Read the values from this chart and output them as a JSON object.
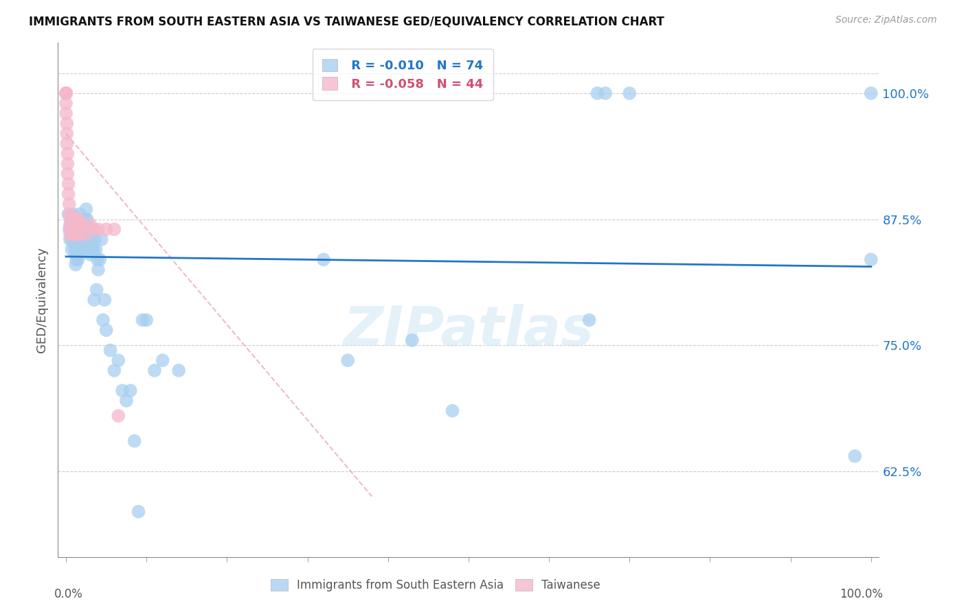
{
  "title": "IMMIGRANTS FROM SOUTH EASTERN ASIA VS TAIWANESE GED/EQUIVALENCY CORRELATION CHART",
  "source": "Source: ZipAtlas.com",
  "ylabel": "GED/Equivalency",
  "ytick_labels": [
    "100.0%",
    "87.5%",
    "75.0%",
    "62.5%"
  ],
  "ytick_values": [
    1.0,
    0.875,
    0.75,
    0.625
  ],
  "xlim": [
    0.0,
    1.0
  ],
  "ylim": [
    0.54,
    1.05
  ],
  "legend_blue_r": "-0.010",
  "legend_blue_n": "74",
  "legend_pink_r": "-0.058",
  "legend_pink_n": "44",
  "legend_blue_label": "Immigrants from South Eastern Asia",
  "legend_pink_label": "Taiwanese",
  "blue_color": "#a8cff0",
  "pink_color": "#f5b8cb",
  "trendline_blue_color": "#2176c7",
  "trendline_pink_color": "#e8b0c0",
  "blue_x": [
    0.003,
    0.004,
    0.005,
    0.006,
    0.007,
    0.007,
    0.008,
    0.009,
    0.009,
    0.01,
    0.011,
    0.011,
    0.012,
    0.012,
    0.013,
    0.013,
    0.014,
    0.015,
    0.015,
    0.016,
    0.017,
    0.017,
    0.018,
    0.019,
    0.02,
    0.021,
    0.022,
    0.023,
    0.024,
    0.025,
    0.026,
    0.027,
    0.028,
    0.029,
    0.03,
    0.031,
    0.032,
    0.033,
    0.034,
    0.035,
    0.036,
    0.037,
    0.038,
    0.039,
    0.04,
    0.042,
    0.044,
    0.046,
    0.048,
    0.05,
    0.055,
    0.06,
    0.065,
    0.07,
    0.075,
    0.08,
    0.085,
    0.09,
    0.095,
    0.1,
    0.11,
    0.12,
    0.14,
    0.32,
    0.35,
    0.43,
    0.48,
    0.65,
    0.66,
    0.67,
    0.7,
    0.98,
    1.0,
    1.0
  ],
  "blue_y": [
    0.88,
    0.865,
    0.855,
    0.87,
    0.855,
    0.845,
    0.87,
    0.88,
    0.865,
    0.85,
    0.855,
    0.845,
    0.84,
    0.83,
    0.845,
    0.835,
    0.855,
    0.845,
    0.835,
    0.845,
    0.88,
    0.87,
    0.855,
    0.865,
    0.875,
    0.855,
    0.845,
    0.865,
    0.875,
    0.885,
    0.875,
    0.87,
    0.855,
    0.845,
    0.84,
    0.855,
    0.845,
    0.865,
    0.845,
    0.795,
    0.855,
    0.845,
    0.805,
    0.835,
    0.825,
    0.835,
    0.855,
    0.775,
    0.795,
    0.765,
    0.745,
    0.725,
    0.735,
    0.705,
    0.695,
    0.705,
    0.655,
    0.585,
    0.775,
    0.775,
    0.725,
    0.735,
    0.725,
    0.835,
    0.735,
    0.755,
    0.685,
    0.775,
    1.0,
    1.0,
    1.0,
    0.64,
    1.0,
    0.835
  ],
  "pink_x": [
    0.0,
    0.0,
    0.0,
    0.0,
    0.0,
    0.0,
    0.001,
    0.001,
    0.001,
    0.002,
    0.002,
    0.002,
    0.003,
    0.003,
    0.004,
    0.004,
    0.005,
    0.005,
    0.006,
    0.006,
    0.007,
    0.007,
    0.008,
    0.008,
    0.009,
    0.009,
    0.01,
    0.01,
    0.011,
    0.012,
    0.013,
    0.014,
    0.015,
    0.016,
    0.017,
    0.018,
    0.02,
    0.025,
    0.03,
    0.035,
    0.04,
    0.05,
    0.06,
    0.065
  ],
  "pink_y": [
    1.0,
    1.0,
    1.0,
    1.0,
    0.99,
    0.98,
    0.97,
    0.96,
    0.95,
    0.94,
    0.93,
    0.92,
    0.91,
    0.9,
    0.89,
    0.88,
    0.87,
    0.86,
    0.875,
    0.865,
    0.86,
    0.87,
    0.875,
    0.865,
    0.86,
    0.875,
    0.86,
    0.87,
    0.875,
    0.87,
    0.875,
    0.86,
    0.875,
    0.86,
    0.87,
    0.865,
    0.87,
    0.86,
    0.87,
    0.865,
    0.865,
    0.865,
    0.865,
    0.68
  ],
  "blue_trendline_x": [
    0.0,
    1.0
  ],
  "blue_trendline_y": [
    0.838,
    0.828
  ],
  "pink_trendline_x": [
    0.0,
    0.38
  ],
  "pink_trendline_y": [
    0.96,
    0.6
  ],
  "top_gridline_y": 1.02
}
